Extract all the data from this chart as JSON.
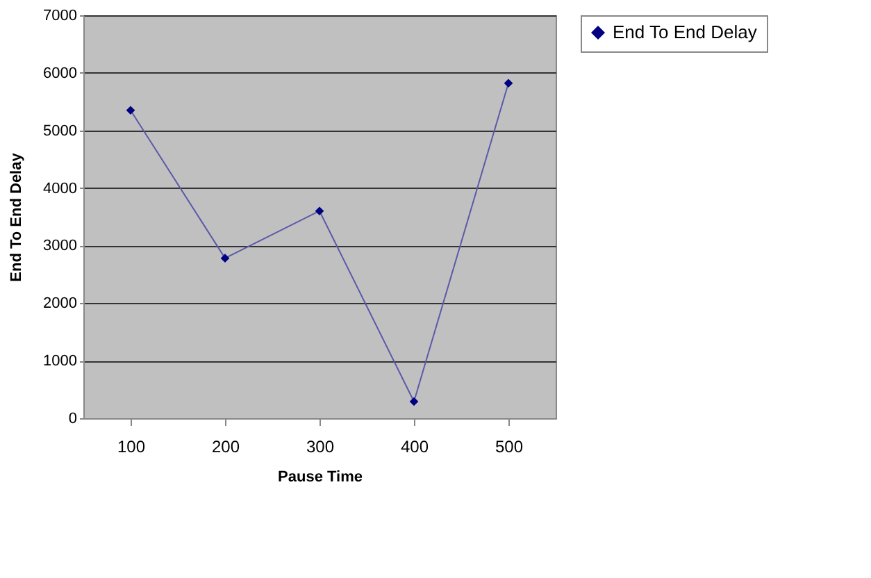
{
  "chart_data": {
    "type": "line",
    "xlabel": "Pause  Time",
    "ylabel": "End To End   Delay",
    "categories": [
      "100",
      "200",
      "300",
      "400",
      "500"
    ],
    "series": [
      {
        "name": "End To End Delay",
        "color": "#000080",
        "values": [
          5350,
          2780,
          3600,
          290,
          5820
        ]
      }
    ],
    "ylim": [
      0,
      7000
    ],
    "yticks": [
      0,
      1000,
      2000,
      3000,
      4000,
      5000,
      6000,
      7000
    ],
    "grid": "y",
    "legend": "right",
    "marker": "diamond",
    "line_style": "solid"
  }
}
